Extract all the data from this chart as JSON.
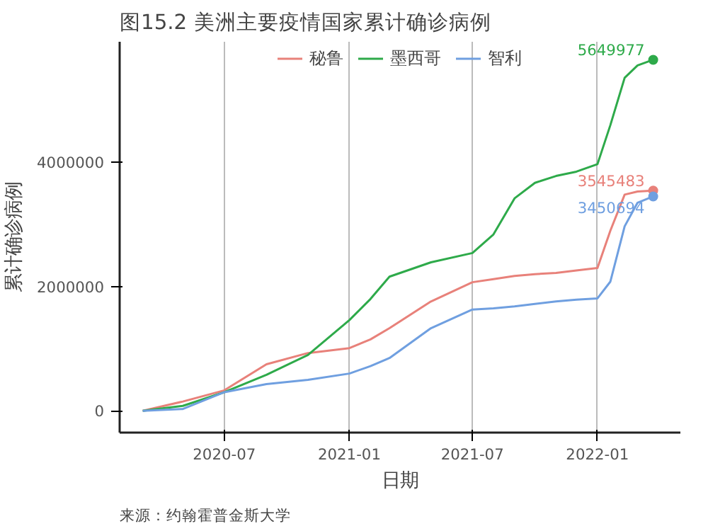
{
  "chart_data": {
    "type": "line",
    "title": "图15.2 美洲主要疫情国家累计确诊病例",
    "xlabel": "日期",
    "ylabel": "累计确诊病例",
    "annotations": [
      "来源：约翰霍普金斯大学"
    ],
    "legend": "top",
    "grid": "x",
    "line_style": "solid",
    "xlim": [
      "2020-01-29",
      "2022-05-03"
    ],
    "ylim": [
      -350000,
      5940000
    ],
    "xticks": [
      {
        "value": "2020-07-01",
        "label": "2020-07"
      },
      {
        "value": "2021-01-01",
        "label": "2021-01"
      },
      {
        "value": "2021-07-01",
        "label": "2021-07"
      },
      {
        "value": "2022-01-01",
        "label": "2022-01"
      }
    ],
    "yticks": [
      0,
      2000000,
      4000000
    ],
    "x": [
      "2020-03-03",
      "2020-05-01",
      "2020-07-01",
      "2020-09-01",
      "2020-11-01",
      "2021-01-01",
      "2021-02-01",
      "2021-03-01",
      "2021-05-01",
      "2021-07-01",
      "2021-08-01",
      "2021-09-01",
      "2021-10-01",
      "2021-11-01",
      "2021-12-01",
      "2022-01-01",
      "2022-01-20",
      "2022-02-10",
      "2022-03-01",
      "2022-03-24"
    ],
    "series": [
      {
        "name": "秘鲁",
        "color": "#e8817a",
        "values": [
          0,
          150000,
          330000,
          750000,
          930000,
          1010000,
          1150000,
          1330000,
          1760000,
          2070000,
          2120000,
          2170000,
          2200000,
          2220000,
          2260000,
          2300000,
          2900000,
          3480000,
          3530000,
          3545483
        ],
        "value_labels": [
          null,
          null,
          null,
          null,
          null,
          null,
          null,
          null,
          null,
          null,
          null,
          null,
          null,
          null,
          null,
          null,
          null,
          null,
          null,
          "3545483"
        ]
      },
      {
        "name": "墨西哥",
        "color": "#2eaa4a",
        "values": [
          0,
          80000,
          300000,
          580000,
          900000,
          1460000,
          1800000,
          2160000,
          2390000,
          2540000,
          2840000,
          3420000,
          3670000,
          3780000,
          3850000,
          3970000,
          4600000,
          5360000,
          5560000,
          5649977
        ],
        "value_labels": [
          null,
          null,
          null,
          null,
          null,
          null,
          null,
          null,
          null,
          null,
          null,
          null,
          null,
          null,
          null,
          null,
          null,
          null,
          null,
          "5649977"
        ]
      },
      {
        "name": "智利",
        "color": "#6f9fe0",
        "values": [
          0,
          30000,
          300000,
          430000,
          500000,
          600000,
          720000,
          850000,
          1330000,
          1630000,
          1650000,
          1680000,
          1720000,
          1760000,
          1790000,
          1810000,
          2080000,
          2970000,
          3350000,
          3450694
        ],
        "value_labels": [
          null,
          null,
          null,
          null,
          null,
          null,
          null,
          null,
          null,
          null,
          null,
          null,
          null,
          null,
          null,
          null,
          null,
          null,
          null,
          "3450694"
        ]
      }
    ]
  }
}
